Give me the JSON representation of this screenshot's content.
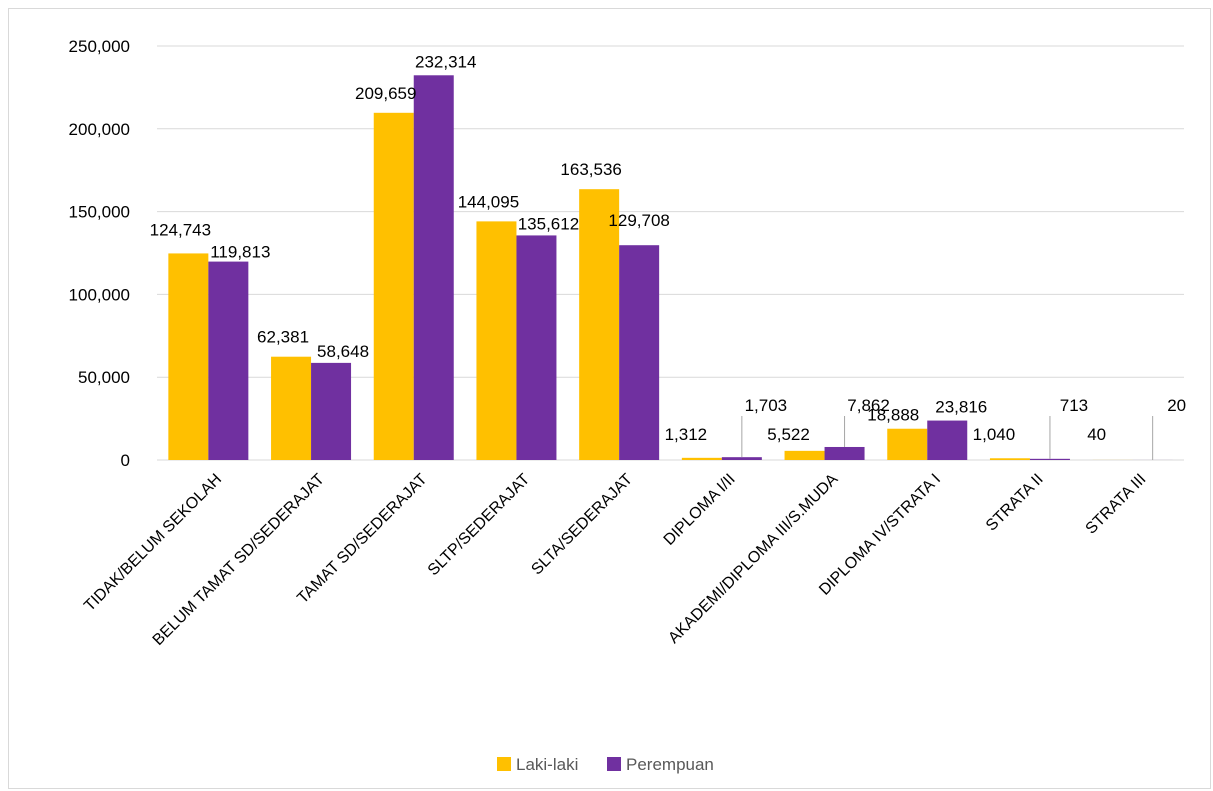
{
  "chart_data": {
    "type": "bar",
    "title": "",
    "xlabel": "",
    "ylabel": "",
    "ylim": [
      0,
      250000
    ],
    "yticks": [
      0,
      50000,
      100000,
      150000,
      200000,
      250000
    ],
    "ytick_labels": [
      "0",
      "50,000",
      "100,000",
      "150,000",
      "200,000",
      "250,000"
    ],
    "grid": true,
    "legend_position": "bottom",
    "categories": [
      "TIDAK/BELUM SEKOLAH",
      "BELUM TAMAT SD/SEDERAJAT",
      "TAMAT SD/SEDERAJAT",
      "SLTP/SEDERAJAT",
      "SLTA/SEDERAJAT",
      "DIPLOMA I/II",
      "AKADEMI/DIPLOMA III/S.MUDA",
      "DIPLOMA IV/STRATA I",
      "STRATA II",
      "STRATA III"
    ],
    "series": [
      {
        "name": "Laki-laki",
        "color": "#FFC000",
        "values": [
          124743,
          62381,
          209659,
          144095,
          163536,
          1312,
          5522,
          18888,
          1040,
          40
        ],
        "labels": [
          "124,743",
          "62,381",
          "209,659",
          "144,095",
          "163,536",
          "1,312",
          "5,522",
          "18,888",
          "1,040",
          "40"
        ]
      },
      {
        "name": "Perempuan",
        "color": "#7030A0",
        "values": [
          119813,
          58648,
          232314,
          135612,
          129708,
          1703,
          7862,
          23816,
          713,
          20
        ],
        "labels": [
          "119,813",
          "58,648",
          "232,314",
          "135,612",
          "129,708",
          "1,703",
          "7,862",
          "23,816",
          "713",
          "20"
        ]
      }
    ]
  }
}
